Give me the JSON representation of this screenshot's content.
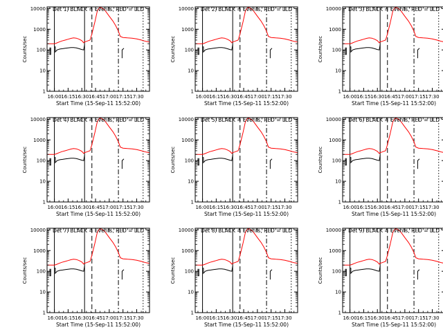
{
  "chart_data": {
    "type": "line",
    "ylabel": "Counts/sec",
    "xlabel": "Start Time (15-Sep-11 15:52:00)",
    "yscale": "log",
    "ylim": [
      1,
      12000
    ],
    "xlim": [
      -8,
      104
    ],
    "x_units": "minutes after 16:00",
    "yticks": [
      {
        "v": 1,
        "label": "1"
      },
      {
        "v": 10,
        "label": "10"
      },
      {
        "v": 100,
        "label": "100"
      },
      {
        "v": 1000,
        "label": "1000"
      },
      {
        "v": 10000,
        "label": "10000"
      }
    ],
    "xticks": [
      {
        "v": 0,
        "label": "16:00"
      },
      {
        "v": 15,
        "label": "16:15"
      },
      {
        "v": 30,
        "label": "16:30"
      },
      {
        "v": 45,
        "label": "16:45"
      },
      {
        "v": 60,
        "label": "17:00"
      },
      {
        "v": 75,
        "label": "17:15"
      },
      {
        "v": 90,
        "label": "17:30"
      }
    ],
    "line_colors": {
      "events": "#000000",
      "lld": "#ff0000"
    },
    "panels": [
      {
        "title": "Det 1, BLACK = Events, RED = LLD"
      },
      {
        "title": "Det 2, BLACK = Events, RED = LLD"
      },
      {
        "title": "Det 3, BLACK = Events, RED = LLD"
      },
      {
        "title": "Det 4, BLACK = Events, RED = LLD"
      },
      {
        "title": "Det 5, BLACK = Events, RED = LLD"
      },
      {
        "title": "Det 6, BLACK = Events, RED = LLD"
      },
      {
        "title": "Det 7, BLACK = Events, RED = LLD"
      },
      {
        "title": "Det 8, BLACK = Events, RED = LLD"
      },
      {
        "title": "Det 9, BLACK = Events, RED = LLD"
      }
    ],
    "markers": [
      {
        "x": 0,
        "style": "solid"
      },
      {
        "x": 33,
        "style": "solid"
      },
      {
        "x": 41,
        "style": "dashed"
      },
      {
        "x": 70,
        "style": "dashdot"
      },
      {
        "x": 97,
        "style": "dotted"
      }
    ],
    "series": [
      {
        "name": "LLD",
        "color": "#ff0000",
        "x": [
          -8,
          0,
          2,
          5,
          8,
          12,
          15,
          18,
          21,
          24,
          27,
          30,
          32,
          33,
          34,
          37,
          39,
          41,
          44,
          47,
          50,
          55,
          60,
          64,
          67,
          70,
          72,
          75,
          80,
          85,
          90,
          95,
          100,
          104
        ],
        "values": [
          200,
          200,
          210,
          240,
          270,
          300,
          330,
          360,
          380,
          370,
          330,
          280,
          220,
          250,
          250,
          280,
          300,
          600,
          2000,
          8000,
          12000,
          8500,
          4200,
          2500,
          1500,
          800,
          450,
          400,
          380,
          370,
          340,
          300,
          260,
          240
        ]
      },
      {
        "name": "Events",
        "color": "#000000",
        "segments": [
          {
            "x": [
              -5,
              -5,
              -4,
              -4
            ],
            "values": [
              130,
              60,
              60,
              130
            ]
          },
          {
            "x": [
              0,
              1,
              1,
              3,
              6,
              9,
              12,
              15,
              18,
              21,
              24,
              27,
              30,
              32,
              33
            ],
            "values": [
              140,
              140,
              80,
              100,
              110,
              115,
              120,
              125,
              130,
              130,
              125,
              115,
              105,
              100,
              180
            ]
          },
          {
            "x": [
              74,
              74,
              76
            ],
            "values": [
              40,
              100,
              120
            ]
          }
        ]
      }
    ]
  }
}
